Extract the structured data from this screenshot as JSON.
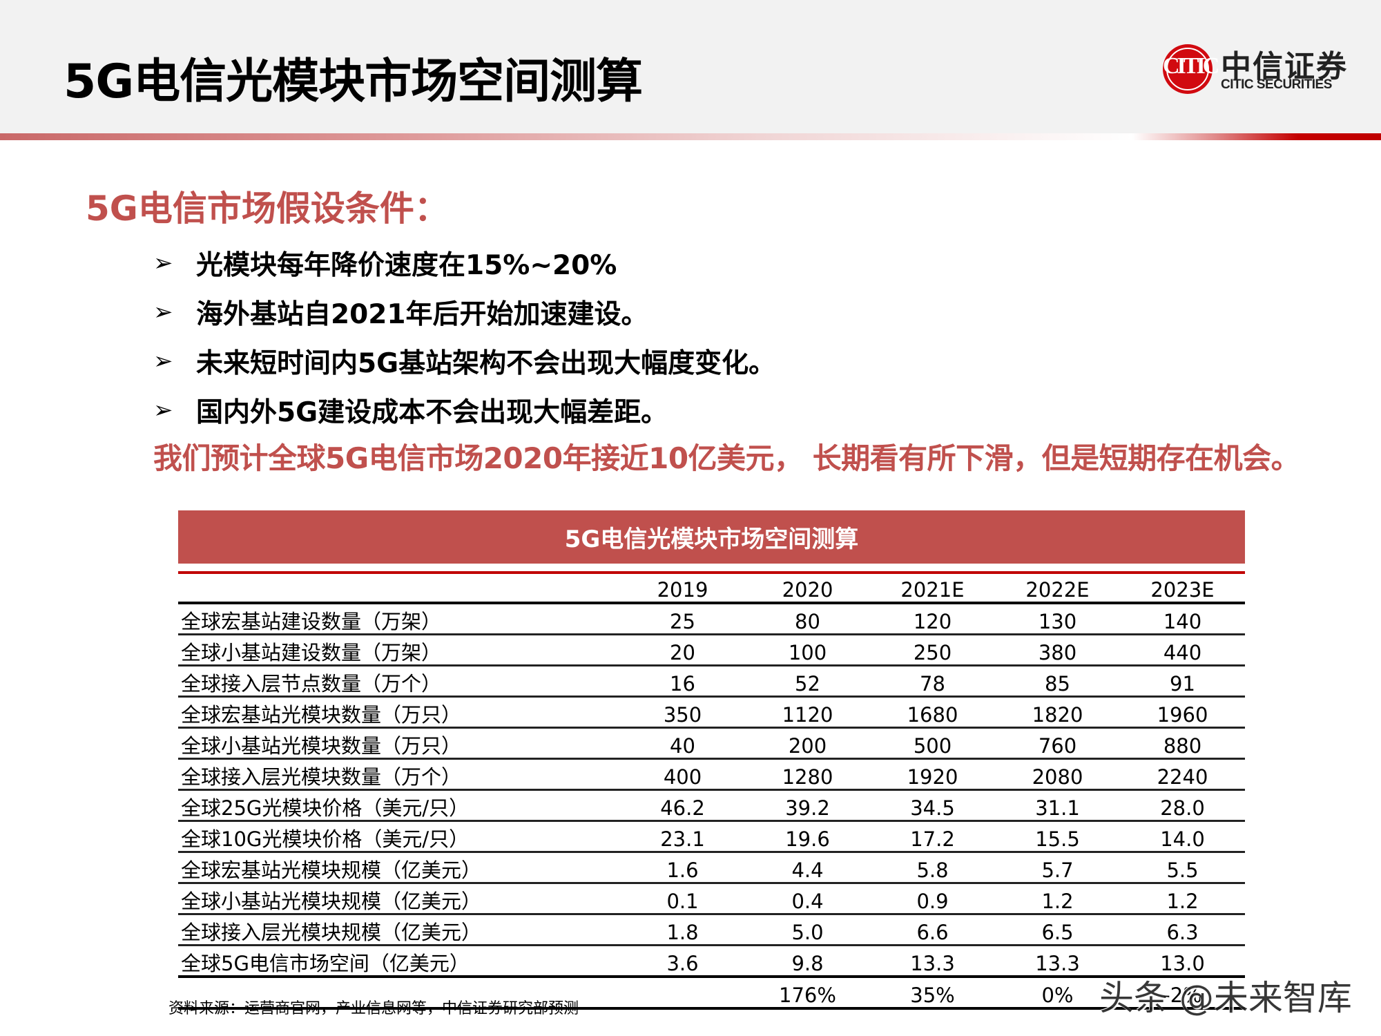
{
  "header": {
    "title": "5G电信光模块市场空间测算",
    "logo": {
      "icon": "citic-logo-icon",
      "glyph": "CITIC",
      "name_cn": "中信证券",
      "name_en": "CITIC SECURITIES",
      "color": "#d10a10"
    }
  },
  "assumptions": {
    "heading": "5G电信市场假设条件：",
    "bullet_icon": "➢",
    "items": [
      "光模块每年降价速度在15%~20%",
      "海外基站自2021年后开始加速建设。",
      "未来短时间内5G基站架构不会出现大幅度变化。",
      "国内外5G建设成本不会出现大幅差距。"
    ],
    "conclusion": "我们预计全球5G电信市场2020年接近10亿美元， 长期看有所下滑，但是短期存在机会。"
  },
  "table": {
    "title": "5G电信光模块市场空间测算",
    "columns": [
      "",
      "2019",
      "2020",
      "2021E",
      "2022E",
      "2023E"
    ],
    "rows": [
      {
        "label": "全球宏基站建设数量（万架）",
        "values": [
          "25",
          "80",
          "120",
          "130",
          "140"
        ]
      },
      {
        "label": "全球小基站建设数量（万架）",
        "values": [
          "20",
          "100",
          "250",
          "380",
          "440"
        ]
      },
      {
        "label": "全球接入层节点数量（万个）",
        "values": [
          "16",
          "52",
          "78",
          "85",
          "91"
        ]
      },
      {
        "label": "全球宏基站光模块数量（万只）",
        "values": [
          "350",
          "1120",
          "1680",
          "1820",
          "1960"
        ]
      },
      {
        "label": "全球小基站光模块数量（万只）",
        "values": [
          "40",
          "200",
          "500",
          "760",
          "880"
        ]
      },
      {
        "label": "全球接入层光模块数量（万个）",
        "values": [
          "400",
          "1280",
          "1920",
          "2080",
          "2240"
        ]
      },
      {
        "label": "全球25G光模块价格（美元/只）",
        "values": [
          "46.2",
          "39.2",
          "34.5",
          "31.1",
          "28.0"
        ]
      },
      {
        "label": "全球10G光模块价格（美元/只）",
        "values": [
          "23.1",
          "19.6",
          "17.2",
          "15.5",
          "14.0"
        ]
      },
      {
        "label": "全球宏基站光模块规模（亿美元）",
        "values": [
          "1.6",
          "4.4",
          "5.8",
          "5.7",
          "5.5"
        ]
      },
      {
        "label": "全球小基站光模块规模（亿美元）",
        "values": [
          "0.1",
          "0.4",
          "0.9",
          "1.2",
          "1.2"
        ]
      },
      {
        "label": "全球接入层光模块规模（亿美元）",
        "values": [
          "1.8",
          "5.0",
          "6.6",
          "6.5",
          "6.3"
        ]
      },
      {
        "label": "全球5G电信市场空间（亿美元）",
        "values": [
          "3.6",
          "9.8",
          "13.3",
          "13.3",
          "13.0"
        ]
      }
    ],
    "growth_row": {
      "label": "",
      "values": [
        "",
        "176%",
        "35%",
        "0%",
        "-2%"
      ]
    },
    "banner_color": "#c0504d",
    "rule_color": "#c00000"
  },
  "footer": {
    "source": "资料来源：运营商官网，产业信息网等，中信证券研究部预测",
    "watermark": "头条 @未来智库"
  }
}
